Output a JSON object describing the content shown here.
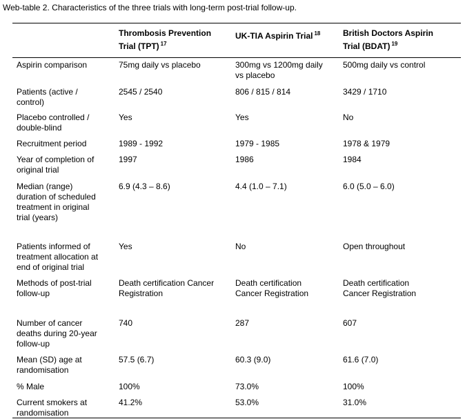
{
  "caption": "Web-table 2. Characteristics of the three trials with long-term post-trial follow-up.",
  "table": {
    "header": [
      {
        "lines": [
          "Thrombosis Prevention",
          "Trial (TPT)"
        ],
        "ref": "17"
      },
      {
        "lines": [
          "UK-TIA Aspirin Trial"
        ],
        "ref": "18"
      },
      {
        "lines": [
          "British Doctors Aspirin",
          "Trial (BDAT)"
        ],
        "ref": "19"
      }
    ],
    "rows": [
      [
        [
          "Aspirin comparison"
        ],
        [
          "75mg daily vs placebo"
        ],
        [
          "300mg vs 1200mg daily",
          "vs placebo"
        ],
        [
          "500mg daily vs control"
        ]
      ],
      [
        [
          "Patients (active /",
          "control)"
        ],
        [
          "2545 / 2540"
        ],
        [
          "806 / 815 / 814"
        ],
        [
          "3429 / 1710"
        ]
      ],
      [
        [
          "Placebo controlled /",
          "double-blind"
        ],
        [
          "Yes"
        ],
        [
          "Yes"
        ],
        [
          "No"
        ]
      ],
      [
        [
          "Recruitment period"
        ],
        [
          "1989 - 1992"
        ],
        [
          "1979 - 1985"
        ],
        [
          "1978 & 1979"
        ]
      ],
      [
        [
          "Year of completion of",
          "original trial"
        ],
        [
          "1997"
        ],
        [
          "1986"
        ],
        [
          "1984"
        ]
      ],
      [
        [
          "Median (range)",
          "duration of scheduled",
          "treatment in original",
          "trial (years)"
        ],
        [
          "6.9 (4.3 – 8.6)"
        ],
        [
          "4.4 (1.0 – 7.1)"
        ],
        [
          "6.0 (5.0 – 6.0)"
        ]
      ],
      [
        [
          "Patients informed of",
          "treatment allocation at",
          "end of original trial"
        ],
        [
          "Yes"
        ],
        [
          "No"
        ],
        [
          "Open throughout"
        ]
      ],
      [
        [
          "Methods of post-trial",
          "follow-up"
        ],
        [
          "Death certification Cancer",
          "Registration"
        ],
        [
          "Death certification",
          "Cancer Registration"
        ],
        [
          "Death certification",
          "Cancer Registration"
        ]
      ],
      [
        [
          "Number of cancer",
          "deaths during 20-year",
          "follow-up"
        ],
        [
          "740"
        ],
        [
          "287"
        ],
        [
          "607"
        ]
      ],
      [
        [
          "Mean (SD) age at",
          "randomisation"
        ],
        [
          "57.5 (6.7)"
        ],
        [
          "60.3 (9.0)"
        ],
        [
          "61.6 (7.0)"
        ]
      ],
      [
        [
          "% Male"
        ],
        [
          "100%"
        ],
        [
          "73.0%"
        ],
        [
          "100%"
        ]
      ],
      [
        [
          "Current smokers at",
          "randomisation"
        ],
        [
          "41.2%"
        ],
        [
          "53.0%"
        ],
        [
          "31.0%"
        ]
      ]
    ]
  }
}
